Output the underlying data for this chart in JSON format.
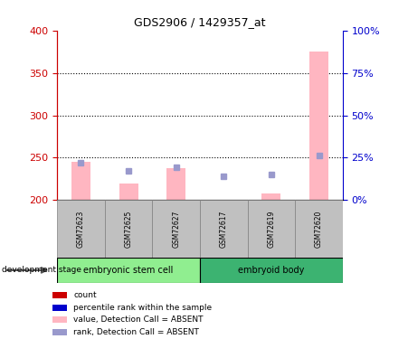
{
  "title": "GDS2906 / 1429357_at",
  "samples": [
    "GSM72623",
    "GSM72625",
    "GSM72627",
    "GSM72617",
    "GSM72619",
    "GSM72620"
  ],
  "groups": [
    {
      "label": "embryonic stem cell",
      "color": "#90EE90",
      "samples": [
        0,
        1,
        2
      ]
    },
    {
      "label": "embryoid body",
      "color": "#3CB371",
      "samples": [
        3,
        4,
        5
      ]
    }
  ],
  "bar_values": [
    245,
    220,
    238,
    200.5,
    208,
    375
  ],
  "rank_values": [
    244,
    234,
    239,
    228,
    230,
    253
  ],
  "ylim_left": [
    200,
    400
  ],
  "ylim_right": [
    0,
    100
  ],
  "yticks_left": [
    200,
    250,
    300,
    350,
    400
  ],
  "yticks_right": [
    0,
    25,
    50,
    75,
    100
  ],
  "bar_color": "#FFB6C1",
  "rank_color": "#9999CC",
  "grid_color": "black",
  "left_axis_color": "#CC0000",
  "right_axis_color": "#0000CC",
  "bar_bottom": 200,
  "legend_items": [
    {
      "label": "count",
      "color": "#CC0000"
    },
    {
      "label": "percentile rank within the sample",
      "color": "#0000CC"
    },
    {
      "label": "value, Detection Call = ABSENT",
      "color": "#FFB6C1"
    },
    {
      "label": "rank, Detection Call = ABSENT",
      "color": "#9999CC"
    }
  ],
  "group_label": "development stage",
  "figure_bg": "#FFFFFF",
  "plot_bg": "#FFFFFF",
  "group_bg": "#C0C0C0",
  "tick_label_color_left": "#CC0000",
  "tick_label_color_right": "#0000CC"
}
